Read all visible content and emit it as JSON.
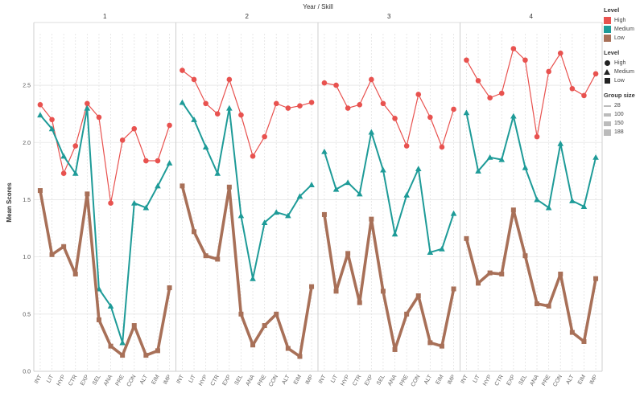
{
  "chart_data": {
    "type": "line",
    "header": "Year / Skill",
    "ylabel": "Mean Scores",
    "ylim": [
      0,
      2.95
    ],
    "yticks": [
      "0.0",
      "0.5",
      "1.0",
      "1.5",
      "2.0",
      "2.5"
    ],
    "panels": [
      "1",
      "2",
      "3",
      "4"
    ],
    "skills": [
      "INT",
      "LIT",
      "HYP",
      "CTR",
      "EXP",
      "SEL",
      "ANA",
      "PRE",
      "CON",
      "ALT",
      "EIM",
      "IMP"
    ],
    "series": [
      {
        "name": "High",
        "color": "#e8524f",
        "shape": "circle",
        "width": 1.2,
        "panels": [
          [
            2.33,
            2.2,
            1.73,
            1.97,
            2.34,
            2.22,
            1.47,
            2.02,
            2.12,
            1.84,
            1.84,
            2.15
          ],
          [
            2.63,
            2.55,
            2.34,
            2.25,
            2.55,
            2.24,
            1.88,
            2.05,
            2.34,
            2.3,
            2.32,
            2.35
          ],
          [
            2.52,
            2.5,
            2.3,
            2.33,
            2.55,
            2.34,
            2.21,
            1.97,
            2.42,
            2.22,
            1.96,
            2.29
          ],
          [
            2.72,
            2.54,
            2.39,
            2.43,
            2.82,
            2.72,
            2.05,
            2.62,
            2.78,
            2.47,
            2.41,
            2.6
          ]
        ]
      },
      {
        "name": "Medium",
        "color": "#1e9b98",
        "shape": "triangle",
        "width": 2,
        "panels": [
          [
            2.24,
            2.12,
            1.88,
            1.73,
            2.3,
            0.72,
            0.57,
            0.25,
            1.47,
            1.43,
            1.62,
            1.82
          ],
          [
            2.35,
            2.2,
            1.96,
            1.73,
            2.3,
            1.36,
            0.81,
            1.3,
            1.39,
            1.36,
            1.53,
            1.63
          ],
          [
            1.92,
            1.59,
            1.65,
            1.55,
            2.09,
            1.76,
            1.2,
            1.54,
            1.77,
            1.04,
            1.07,
            1.38
          ],
          [
            2.26,
            1.75,
            1.87,
            1.85,
            2.23,
            1.78,
            1.5,
            1.43,
            1.99,
            1.49,
            1.44,
            1.87
          ]
        ]
      },
      {
        "name": "Low",
        "color": "#a87058",
        "shape": "square",
        "width": 3.6,
        "panels": [
          [
            1.58,
            1.02,
            1.09,
            0.85,
            1.55,
            0.45,
            0.22,
            0.14,
            0.4,
            0.14,
            0.18,
            0.73
          ],
          [
            1.62,
            1.22,
            1.01,
            0.98,
            1.61,
            0.5,
            0.23,
            0.4,
            0.5,
            0.2,
            0.13,
            0.74
          ],
          [
            1.37,
            0.7,
            1.03,
            0.6,
            1.33,
            0.7,
            0.19,
            0.5,
            0.66,
            0.25,
            0.22,
            0.72
          ],
          [
            1.16,
            0.77,
            0.86,
            0.85,
            1.41,
            1.01,
            0.59,
            0.57,
            0.85,
            0.34,
            0.26,
            0.81
          ]
        ]
      }
    ],
    "grid": true,
    "legend_position": "right"
  },
  "legend": {
    "color_title": "Level",
    "color_items": [
      {
        "label": "High",
        "color": "#e8524f"
      },
      {
        "label": "Medium",
        "color": "#1e9b98"
      },
      {
        "label": "Low",
        "color": "#a87058"
      }
    ],
    "shape_title": "Level",
    "shape_items": [
      {
        "label": "High",
        "shape": "circle"
      },
      {
        "label": "Medium",
        "shape": "triangle"
      },
      {
        "label": "Low",
        "shape": "square"
      }
    ],
    "size_title": "Group size",
    "size_items": [
      {
        "label": "28",
        "size": 28
      },
      {
        "label": "100",
        "size": 100
      },
      {
        "label": "150",
        "size": 150
      },
      {
        "label": "188",
        "size": 188
      }
    ]
  }
}
